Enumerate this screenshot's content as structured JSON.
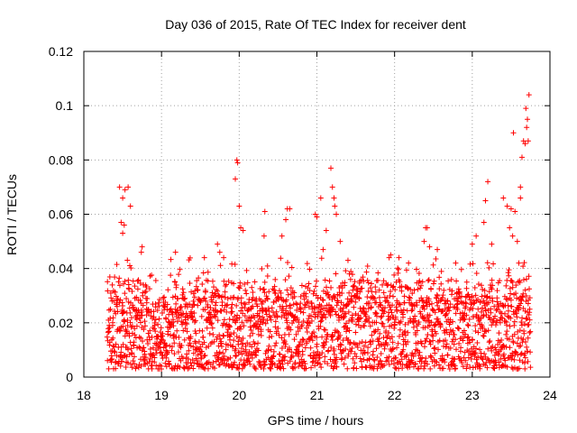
{
  "chart_data": {
    "type": "scatter",
    "title": "Day 036 of 2015, Rate Of TEC Index for receiver dent",
    "xlabel": "GPS time / hours",
    "ylabel": "ROTI / TECUs",
    "xlim": [
      18,
      24
    ],
    "ylim": [
      0,
      0.12
    ],
    "x_ticks": [
      18,
      19,
      20,
      21,
      22,
      23,
      24
    ],
    "x_tick_labels": [
      "18",
      "19",
      "20",
      "21",
      "22",
      "23",
      "24"
    ],
    "y_ticks": [
      0,
      0.02,
      0.04,
      0.06,
      0.08,
      0.1,
      0.12
    ],
    "y_tick_labels": [
      "0",
      "0.02",
      "0.04",
      "0.06",
      "0.08",
      "0.1",
      "0.12"
    ],
    "grid": true,
    "marker": "+",
    "color": "#ff0000",
    "series": [
      {
        "name": "ROTI",
        "x_range": [
          18.3,
          23.75
        ],
        "dense_band": [
          0.003,
          0.03
        ],
        "points": [
          [
            18.46,
            0.07
          ],
          [
            18.5,
            0.066
          ],
          [
            18.53,
            0.069
          ],
          [
            18.57,
            0.07
          ],
          [
            18.6,
            0.063
          ],
          [
            18.48,
            0.057
          ],
          [
            18.5,
            0.053
          ],
          [
            18.52,
            0.056
          ],
          [
            18.75,
            0.048
          ],
          [
            18.74,
            0.046
          ],
          [
            19.18,
            0.046
          ],
          [
            19.72,
            0.049
          ],
          [
            19.75,
            0.046
          ],
          [
            19.8,
            0.044
          ],
          [
            19.95,
            0.073
          ],
          [
            19.97,
            0.08
          ],
          [
            19.98,
            0.079
          ],
          [
            20.0,
            0.063
          ],
          [
            20.02,
            0.055
          ],
          [
            20.05,
            0.054
          ],
          [
            20.33,
            0.061
          ],
          [
            20.32,
            0.052
          ],
          [
            20.62,
            0.062
          ],
          [
            20.65,
            0.062
          ],
          [
            20.6,
            0.058
          ],
          [
            20.55,
            0.052
          ],
          [
            20.98,
            0.06
          ],
          [
            21.0,
            0.059
          ],
          [
            21.05,
            0.066
          ],
          [
            21.18,
            0.077
          ],
          [
            21.2,
            0.07
          ],
          [
            21.22,
            0.066
          ],
          [
            21.23,
            0.063
          ],
          [
            21.25,
            0.06
          ],
          [
            21.12,
            0.054
          ],
          [
            21.3,
            0.05
          ],
          [
            21.08,
            0.047
          ],
          [
            21.4,
            0.043
          ],
          [
            21.93,
            0.044
          ],
          [
            21.95,
            0.045
          ],
          [
            22.18,
            0.042
          ],
          [
            22.4,
            0.055
          ],
          [
            22.42,
            0.055
          ],
          [
            22.38,
            0.05
          ],
          [
            22.45,
            0.048
          ],
          [
            22.55,
            0.047
          ],
          [
            23.0,
            0.049
          ],
          [
            23.05,
            0.052
          ],
          [
            23.15,
            0.057
          ],
          [
            23.2,
            0.072
          ],
          [
            23.17,
            0.065
          ],
          [
            23.25,
            0.049
          ],
          [
            23.4,
            0.066
          ],
          [
            23.45,
            0.063
          ],
          [
            23.5,
            0.062
          ],
          [
            23.55,
            0.061
          ],
          [
            23.48,
            0.055
          ],
          [
            23.52,
            0.052
          ],
          [
            23.58,
            0.05
          ],
          [
            23.6,
            0.042
          ],
          [
            23.53,
            0.09
          ],
          [
            23.62,
            0.07
          ],
          [
            23.62,
            0.066
          ],
          [
            23.64,
            0.081
          ],
          [
            23.66,
            0.087
          ],
          [
            23.68,
            0.086
          ],
          [
            23.7,
            0.092
          ],
          [
            23.72,
            0.087
          ],
          [
            23.69,
            0.099
          ],
          [
            23.73,
            0.104
          ],
          [
            23.71,
            0.095
          ]
        ]
      }
    ]
  }
}
